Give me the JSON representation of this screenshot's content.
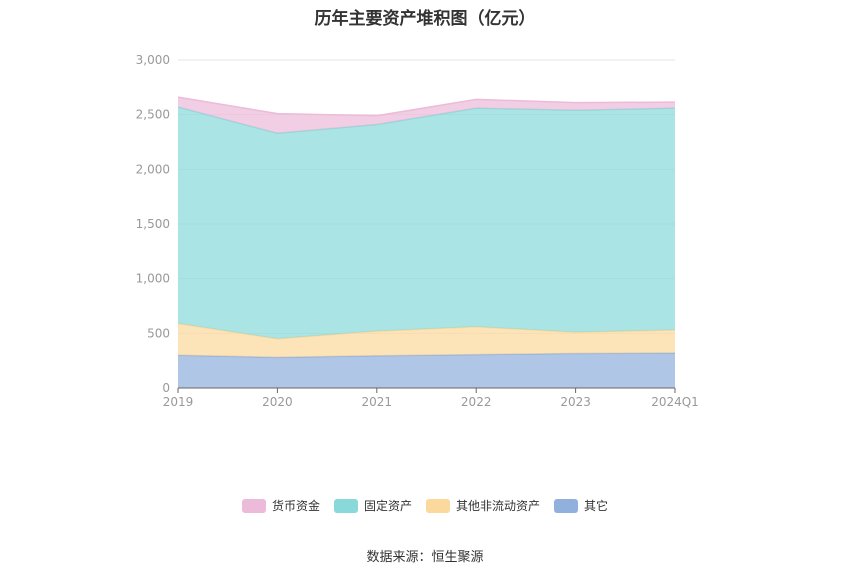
{
  "chart_title": "历年主要资产堆积图（亿元）",
  "source_text": "数据来源：恒生聚源",
  "chart_data": {
    "type": "area",
    "stacked": true,
    "title": "历年主要资产堆积图（亿元）",
    "x": [
      "2019",
      "2020",
      "2021",
      "2022",
      "2023",
      "2024Q1"
    ],
    "ylim": [
      0,
      3000
    ],
    "yticks": [
      0,
      500,
      1000,
      1500,
      2000,
      2500,
      3000
    ],
    "ytick_labels": [
      "0",
      "500",
      "1,000",
      "1,500",
      "2,000",
      "2,500",
      "3,000"
    ],
    "grid": true,
    "legend_position": "bottom",
    "series": [
      {
        "name": "其它",
        "color": "#92b0de",
        "values": [
          300,
          280,
          295,
          305,
          315,
          320
        ]
      },
      {
        "name": "其他非流动资产",
        "color": "#fbd89c",
        "values": [
          290,
          170,
          225,
          255,
          195,
          210
        ]
      },
      {
        "name": "固定资产",
        "color": "#8ad9da",
        "values": [
          1980,
          1880,
          1890,
          2000,
          2030,
          2030
        ]
      },
      {
        "name": "货币资金",
        "color": "#ecbbd9",
        "values": [
          90,
          180,
          80,
          80,
          70,
          55
        ]
      }
    ],
    "legend_order": [
      "货币资金",
      "固定资产",
      "其他非流动资产",
      "其它"
    ]
  }
}
